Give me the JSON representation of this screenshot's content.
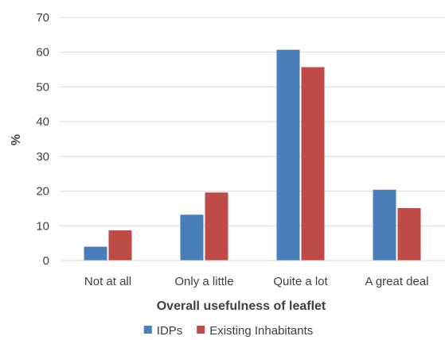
{
  "chart_data": {
    "type": "bar",
    "categories": [
      "Not at all",
      "Only a little",
      "Quite a lot",
      "A great deal"
    ],
    "series": [
      {
        "name": "IDPs",
        "values": [
          4,
          13.2,
          60.7,
          20.4
        ],
        "color": "#4a7ebb"
      },
      {
        "name": "Existing Inhabitants",
        "values": [
          8.7,
          19.6,
          55.7,
          15.1
        ],
        "color": "#be4b48"
      }
    ],
    "title": "",
    "xlabel": "Overall usefulness of leaflet",
    "ylabel": "%",
    "ylim": [
      0,
      70
    ],
    "yticks": [
      0,
      10,
      20,
      30,
      40,
      50,
      60,
      70
    ],
    "grid": true,
    "legend_position": "bottom"
  }
}
